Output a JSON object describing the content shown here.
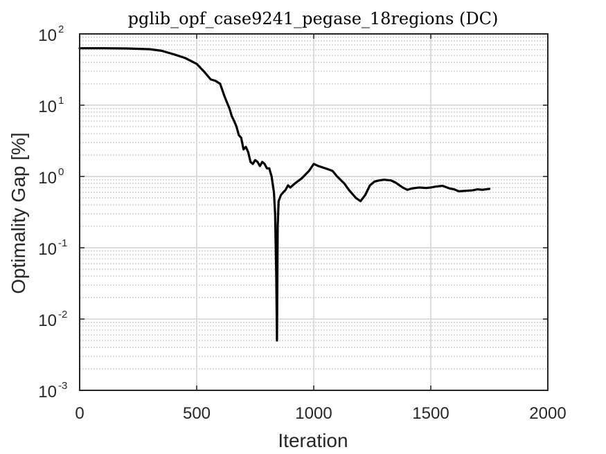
{
  "chart_data": {
    "type": "line",
    "title": "pglib_opf_case9241_pegase_18regions (DC)",
    "xlabel": "Iteration",
    "ylabel": "Optimality Gap [%]",
    "xlim": [
      0,
      2000
    ],
    "ylim": [
      0.001,
      100
    ],
    "yscale": "log",
    "grid": true,
    "minor_grid": true,
    "x_ticks": [
      "0",
      "500",
      "1000",
      "1500",
      "2000"
    ],
    "y_ticks": [
      {
        "base": "10",
        "exp": "-3"
      },
      {
        "base": "10",
        "exp": "-2"
      },
      {
        "base": "10",
        "exp": "-1"
      },
      {
        "base": "10",
        "exp": "0"
      },
      {
        "base": "10",
        "exp": "1"
      },
      {
        "base": "10",
        "exp": "2"
      }
    ],
    "series": [
      {
        "color": "#000000",
        "x": [
          0,
          100,
          200,
          300,
          350,
          400,
          450,
          500,
          530,
          560,
          580,
          600,
          620,
          640,
          650,
          660,
          670,
          680,
          690,
          700,
          710,
          720,
          730,
          740,
          750,
          760,
          770,
          780,
          790,
          800,
          810,
          820,
          830,
          835,
          840,
          843,
          846,
          850,
          860,
          870,
          880,
          890,
          900,
          920,
          950,
          980,
          1000,
          1020,
          1050,
          1080,
          1100,
          1130,
          1150,
          1180,
          1200,
          1220,
          1240,
          1260,
          1280,
          1300,
          1330,
          1350,
          1380,
          1400,
          1420,
          1450,
          1480,
          1500,
          1520,
          1550,
          1580,
          1600,
          1620,
          1650,
          1680,
          1700,
          1720,
          1750
        ],
        "y": [
          63,
          63,
          62.5,
          61,
          58,
          52,
          46,
          38,
          30,
          23,
          22,
          20,
          13,
          9,
          7,
          6,
          5,
          3.8,
          3.5,
          2.4,
          2.6,
          2.2,
          1.6,
          1.5,
          1.7,
          1.6,
          1.4,
          1.6,
          1.5,
          1.3,
          1.3,
          1.0,
          0.6,
          0.3,
          0.04,
          0.005,
          0.2,
          0.45,
          0.55,
          0.6,
          0.65,
          0.75,
          0.7,
          0.8,
          0.95,
          1.2,
          1.5,
          1.4,
          1.3,
          1.2,
          1.0,
          0.8,
          0.65,
          0.5,
          0.45,
          0.55,
          0.75,
          0.85,
          0.88,
          0.9,
          0.88,
          0.82,
          0.7,
          0.65,
          0.68,
          0.7,
          0.69,
          0.7,
          0.72,
          0.74,
          0.68,
          0.66,
          0.62,
          0.63,
          0.64,
          0.66,
          0.65,
          0.67
        ]
      }
    ]
  }
}
